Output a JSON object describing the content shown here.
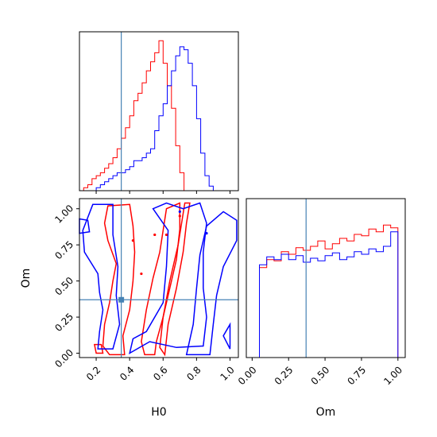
{
  "chart_data": {
    "type": "corner",
    "parameters": [
      "H0",
      "Om"
    ],
    "truth": {
      "H0": 0.35,
      "Om": 0.37
    },
    "truth_color": "#4682b4",
    "series": [
      {
        "color": "#ff0000"
      },
      {
        "color": "#0000ff"
      }
    ],
    "panels": [
      {
        "id": "H0-hist",
        "type": "step-histogram",
        "xlim": [
          0.1,
          1.05
        ],
        "bin_edges": [
          0.1,
          0.125,
          0.15,
          0.175,
          0.2,
          0.225,
          0.25,
          0.275,
          0.3,
          0.325,
          0.35,
          0.375,
          0.4,
          0.425,
          0.45,
          0.475,
          0.5,
          0.525,
          0.55,
          0.575,
          0.6,
          0.625,
          0.65,
          0.675,
          0.7,
          0.725,
          0.75,
          0.775,
          0.8,
          0.825,
          0.85,
          0.875,
          0.9,
          0.925,
          0.95
        ],
        "ylim": [
          0,
          1.06
        ],
        "counts": [
          [
            0.0,
            0.02,
            0.04,
            0.08,
            0.1,
            0.12,
            0.15,
            0.18,
            0.22,
            0.28,
            0.35,
            0.42,
            0.5,
            0.6,
            0.65,
            0.72,
            0.8,
            0.86,
            0.92,
            1.0,
            0.85,
            0.7,
            0.55,
            0.3,
            0.12,
            0.0,
            0.0,
            0.0,
            0.0,
            0.0,
            0.0,
            0.0,
            0.0,
            0.0
          ],
          [
            0.0,
            0.0,
            0.0,
            0.0,
            0.02,
            0.04,
            0.06,
            0.08,
            0.1,
            0.12,
            0.12,
            0.14,
            0.16,
            0.2,
            0.2,
            0.22,
            0.25,
            0.28,
            0.4,
            0.5,
            0.58,
            0.7,
            0.8,
            0.9,
            0.96,
            0.94,
            0.85,
            0.7,
            0.48,
            0.25,
            0.1,
            0.03,
            0.0,
            0.0
          ]
        ],
        "x_ticks": [
          0.2,
          0.4,
          0.6,
          0.8,
          1.0
        ]
      },
      {
        "id": "H0-Om-contour",
        "type": "contour",
        "xlim": [
          0.1,
          1.05
        ],
        "ylim": [
          -0.03,
          1.07
        ],
        "x_ticks": [
          "0.2",
          "0.4",
          "0.6",
          "0.8",
          "1.0"
        ],
        "y_ticks": [
          "0.00",
          "0.25",
          "0.50",
          "0.75",
          "1.00"
        ],
        "xlabel": "H0",
        "ylabel": "Om"
      },
      {
        "id": "Om-hist",
        "type": "step-histogram",
        "xlim": [
          -0.04,
          1.05
        ],
        "bin_edges": [
          0.0,
          0.05,
          0.1,
          0.15,
          0.2,
          0.25,
          0.3,
          0.35,
          0.4,
          0.45,
          0.5,
          0.55,
          0.6,
          0.65,
          0.7,
          0.75,
          0.8,
          0.85,
          0.9,
          0.95,
          1.0
        ],
        "ylim": [
          0,
          1.2
        ],
        "counts": [
          [
            0.0,
            0.68,
            0.74,
            0.73,
            0.8,
            0.78,
            0.83,
            0.81,
            0.84,
            0.88,
            0.82,
            0.86,
            0.9,
            0.88,
            0.93,
            0.92,
            0.97,
            0.95,
            1.0,
            0.98
          ],
          [
            0.0,
            0.7,
            0.76,
            0.74,
            0.78,
            0.74,
            0.77,
            0.72,
            0.75,
            0.73,
            0.77,
            0.79,
            0.74,
            0.76,
            0.8,
            0.78,
            0.82,
            0.8,
            0.84,
            0.95
          ]
        ],
        "x_ticks": [
          "0.00",
          "0.25",
          "0.50",
          "0.75",
          "1.00"
        ],
        "xlabel": "Om"
      }
    ]
  }
}
